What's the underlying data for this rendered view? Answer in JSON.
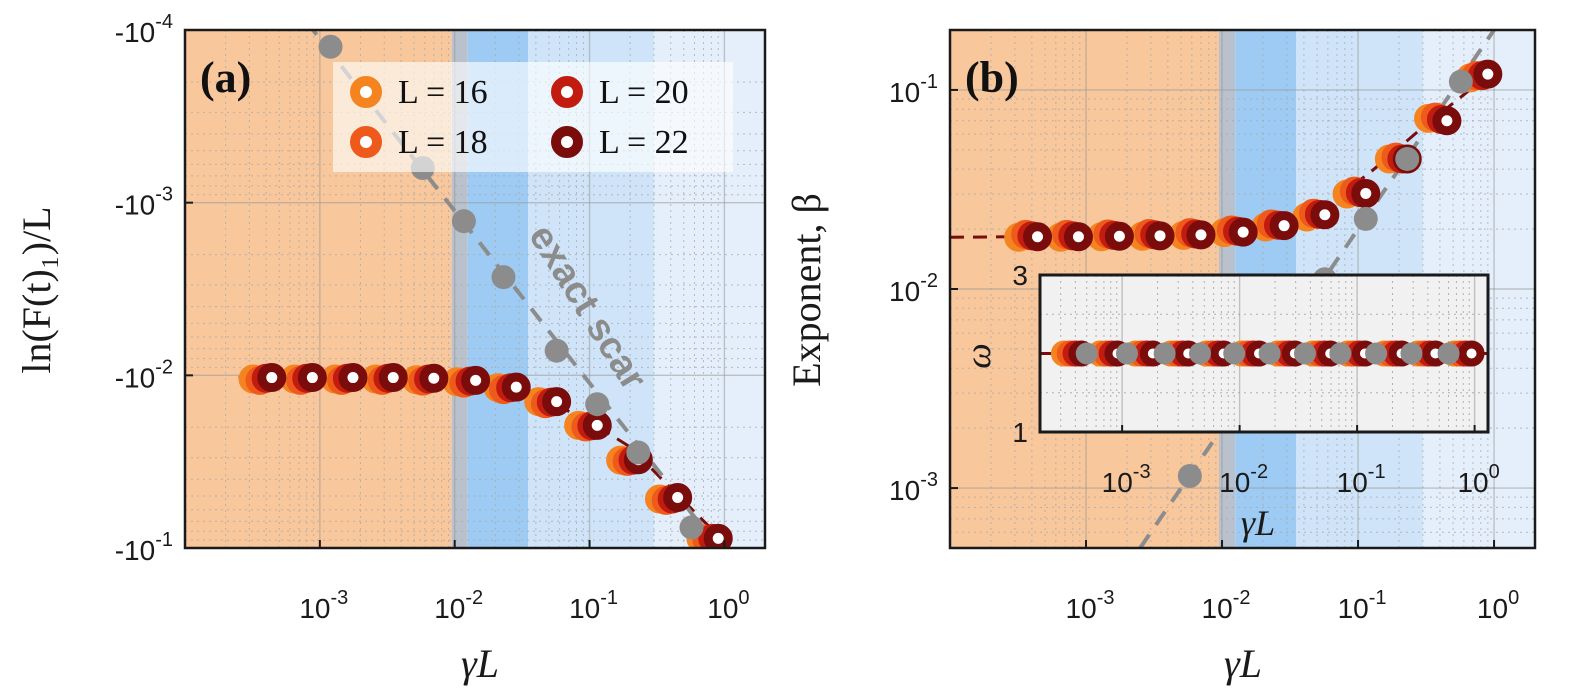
{
  "chart_data": [
    {
      "id": "a",
      "type": "scatter",
      "panel_label": "(a)",
      "xlabel": "γL",
      "ylabel": "ln(F(t)₁)/L",
      "xscale": "log",
      "yscale": "log-negative",
      "xlim": [
        0.0001,
        2
      ],
      "ylim": [
        -0.0001,
        -0.1
      ],
      "x_ticks": [
        {
          "value": 0.001,
          "base": "10",
          "exp": "-3"
        },
        {
          "value": 0.01,
          "base": "10",
          "exp": "-2"
        },
        {
          "value": 0.1,
          "base": "10",
          "exp": "-1"
        },
        {
          "value": 1,
          "base": "10",
          "exp": "0"
        }
      ],
      "y_ticks": [
        {
          "value": 0.0001,
          "base": "-10",
          "exp": "-4"
        },
        {
          "value": 0.001,
          "base": "-10",
          "exp": "-3"
        },
        {
          "value": 0.01,
          "base": "-10",
          "exp": "-2"
        },
        {
          "value": 0.1,
          "base": "-10",
          "exp": "-1"
        }
      ],
      "regions": [
        {
          "from": 0.0001,
          "to": 0.0095,
          "color": "#f8c79c"
        },
        {
          "from": 0.0095,
          "to": 0.0125,
          "color": "#b9c2cc"
        },
        {
          "from": 0.0125,
          "to": 0.035,
          "color": "#9ecbf3"
        },
        {
          "from": 0.035,
          "to": 0.3,
          "color": "#cfe4f9"
        },
        {
          "from": 0.3,
          "to": 2,
          "color": "#e4effb"
        }
      ],
      "legend": {
        "position": "top-right",
        "entries": [
          "L = 16",
          "L = 18",
          "L = 20",
          "L = 22"
        ]
      },
      "annotation": "exact scar",
      "series": [
        {
          "name": "L = 16",
          "color": "#f5831f",
          "x": [
            0.00032,
            0.00065,
            0.0013,
            0.0026,
            0.0052,
            0.0104,
            0.021,
            0.042,
            0.083,
            0.17,
            0.33,
            0.67
          ],
          "y": [
            0.0105,
            0.0105,
            0.0105,
            0.0105,
            0.0106,
            0.0109,
            0.0118,
            0.0142,
            0.0195,
            0.031,
            0.052,
            0.088
          ]
        },
        {
          "name": "L = 18",
          "color": "#ee5a1b",
          "x": [
            0.00036,
            0.00072,
            0.00145,
            0.0029,
            0.0058,
            0.0117,
            0.023,
            0.047,
            0.094,
            0.19,
            0.37,
            0.74
          ],
          "y": [
            0.0107,
            0.0107,
            0.0107,
            0.0107,
            0.0108,
            0.0111,
            0.0121,
            0.0146,
            0.0199,
            0.0315,
            0.053,
            0.089
          ]
        },
        {
          "name": "L = 20",
          "color": "#c21b10",
          "x": [
            0.0004,
            0.0008,
            0.0016,
            0.0032,
            0.0064,
            0.013,
            0.026,
            0.052,
            0.104,
            0.21,
            0.41,
            0.82
          ],
          "y": [
            0.0104,
            0.0104,
            0.0104,
            0.0104,
            0.0105,
            0.0108,
            0.0118,
            0.0143,
            0.0196,
            0.031,
            0.052,
            0.088
          ]
        },
        {
          "name": "L = 22",
          "color": "#7a0c0c",
          "x": [
            0.00044,
            0.00088,
            0.00176,
            0.0035,
            0.007,
            0.0143,
            0.0286,
            0.057,
            0.114,
            0.23,
            0.45,
            0.9
          ],
          "y": [
            0.0103,
            0.0103,
            0.0103,
            0.0103,
            0.0104,
            0.0107,
            0.0117,
            0.0142,
            0.0195,
            0.0308,
            0.051,
            0.088
          ]
        },
        {
          "name": "exact scar",
          "color": "#8c8c8c",
          "x": [
            0.0012,
            0.0058,
            0.0117,
            0.023,
            0.057,
            0.114,
            0.23,
            0.57
          ],
          "y": [
            0.000125,
            0.00063,
            0.00128,
            0.0027,
            0.0072,
            0.0147,
            0.028,
            0.076
          ]
        }
      ],
      "fit_lines": [
        {
          "color": "#7a0c0c",
          "style": "dashed",
          "x": [
            0.00025,
            0.002,
            0.008,
            0.02,
            0.05,
            0.1,
            0.2,
            0.4,
            1.0
          ],
          "y": [
            0.0103,
            0.0103,
            0.0104,
            0.0113,
            0.0142,
            0.0185,
            0.026,
            0.045,
            0.092
          ]
        },
        {
          "color": "#8c8c8c",
          "style": "dashed",
          "x": [
            0.0008,
            1.0
          ],
          "y": [
            9e-05,
            0.11
          ]
        }
      ]
    },
    {
      "id": "b",
      "type": "scatter",
      "panel_label": "(b)",
      "xlabel": "γL",
      "ylabel": "Exponent, β",
      "xscale": "log",
      "yscale": "log",
      "xlim": [
        0.0001,
        2
      ],
      "ylim": [
        0.0005,
        0.2
      ],
      "x_ticks": [
        {
          "value": 0.001,
          "base": "10",
          "exp": "-3"
        },
        {
          "value": 0.01,
          "base": "10",
          "exp": "-2"
        },
        {
          "value": 0.1,
          "base": "10",
          "exp": "-1"
        },
        {
          "value": 1,
          "base": "10",
          "exp": "0"
        }
      ],
      "y_ticks": [
        {
          "value": 0.001,
          "base": "10",
          "exp": "-3"
        },
        {
          "value": 0.01,
          "base": "10",
          "exp": "-2"
        },
        {
          "value": 0.1,
          "base": "10",
          "exp": "-1"
        }
      ],
      "series": [
        {
          "name": "L = 16",
          "color": "#f5831f",
          "x": [
            0.00032,
            0.00065,
            0.0013,
            0.0026,
            0.0052,
            0.0104,
            0.021,
            0.042,
            0.083,
            0.17,
            0.33,
            0.67
          ],
          "y": [
            0.0182,
            0.0182,
            0.0183,
            0.0184,
            0.0186,
            0.0192,
            0.0205,
            0.023,
            0.03,
            0.045,
            0.072,
            0.115
          ]
        },
        {
          "name": "L = 18",
          "color": "#ee5a1b",
          "x": [
            0.00036,
            0.00072,
            0.00145,
            0.0029,
            0.0058,
            0.0117,
            0.023,
            0.047,
            0.094,
            0.19,
            0.37,
            0.74
          ],
          "y": [
            0.0188,
            0.0188,
            0.0189,
            0.019,
            0.0192,
            0.0198,
            0.0212,
            0.024,
            0.031,
            0.046,
            0.073,
            0.118
          ]
        },
        {
          "name": "L = 20",
          "color": "#c21b10",
          "x": [
            0.0004,
            0.0008,
            0.0016,
            0.0032,
            0.0064,
            0.013,
            0.026,
            0.052,
            0.104,
            0.21,
            0.41,
            0.82
          ],
          "y": [
            0.0185,
            0.0185,
            0.0186,
            0.0187,
            0.0189,
            0.0195,
            0.0209,
            0.0237,
            0.0305,
            0.045,
            0.071,
            0.118
          ]
        },
        {
          "name": "L = 22",
          "color": "#7a0c0c",
          "x": [
            0.00044,
            0.00088,
            0.00176,
            0.0035,
            0.007,
            0.0143,
            0.0286,
            0.057,
            0.114,
            0.23,
            0.45,
            0.9
          ],
          "y": [
            0.0183,
            0.0183,
            0.0184,
            0.0185,
            0.0187,
            0.0193,
            0.0208,
            0.0236,
            0.0302,
            0.045,
            0.07,
            0.12
          ]
        },
        {
          "name": "exact scar",
          "color": "#8c8c8c",
          "x": [
            0.0058,
            0.057,
            0.114,
            0.23,
            0.57
          ],
          "y": [
            0.00115,
            0.0112,
            0.0225,
            0.045,
            0.11
          ]
        }
      ],
      "fit_lines": [
        {
          "color": "#7a0c0c",
          "style": "dashed",
          "x": [
            0.0001,
            0.003,
            0.008,
            0.015,
            0.03,
            0.06,
            0.12,
            0.3,
            1.0
          ],
          "y": [
            0.0182,
            0.0185,
            0.0188,
            0.0198,
            0.022,
            0.027,
            0.038,
            0.065,
            0.125
          ]
        },
        {
          "color": "#8c8c8c",
          "style": "dashed",
          "x": [
            0.0025,
            1.0
          ],
          "y": [
            0.0005,
            0.2
          ]
        }
      ],
      "inset": {
        "type": "scatter",
        "xlabel": "γL",
        "ylabel": "ω",
        "xscale": "log",
        "xlim": [
          0.0002,
          1.3
        ],
        "ylim": [
          1,
          3
        ],
        "x_ticks": [
          {
            "value": 0.001,
            "base": "10",
            "exp": "-3"
          },
          {
            "value": 0.01,
            "base": "10",
            "exp": "-2"
          },
          {
            "value": 0.1,
            "base": "10",
            "exp": "-1"
          },
          {
            "value": 1,
            "base": "10",
            "exp": "0"
          }
        ],
        "y_ticks": [
          {
            "value": 1,
            "label": "1"
          },
          {
            "value": 3,
            "label": "3"
          }
        ],
        "series_colors": [
          "#f5831f",
          "#ee5a1b",
          "#c21b10",
          "#7a0c0c"
        ],
        "scar_color": "#8c8c8c",
        "x": [
          0.00032,
          0.00065,
          0.0013,
          0.0026,
          0.0052,
          0.0104,
          0.021,
          0.042,
          0.083,
          0.17,
          0.33,
          0.67
        ],
        "omega": [
          2,
          2,
          2,
          2,
          2,
          2,
          2,
          2,
          2,
          2,
          2,
          2
        ],
        "scar_x": [
          0.0005,
          0.0011,
          0.0023,
          0.0046,
          0.009,
          0.018,
          0.036,
          0.072,
          0.145,
          0.29,
          0.6
        ],
        "scar_omega": [
          2,
          2,
          2,
          2,
          2,
          2,
          2,
          2,
          2,
          2,
          2
        ]
      }
    }
  ]
}
